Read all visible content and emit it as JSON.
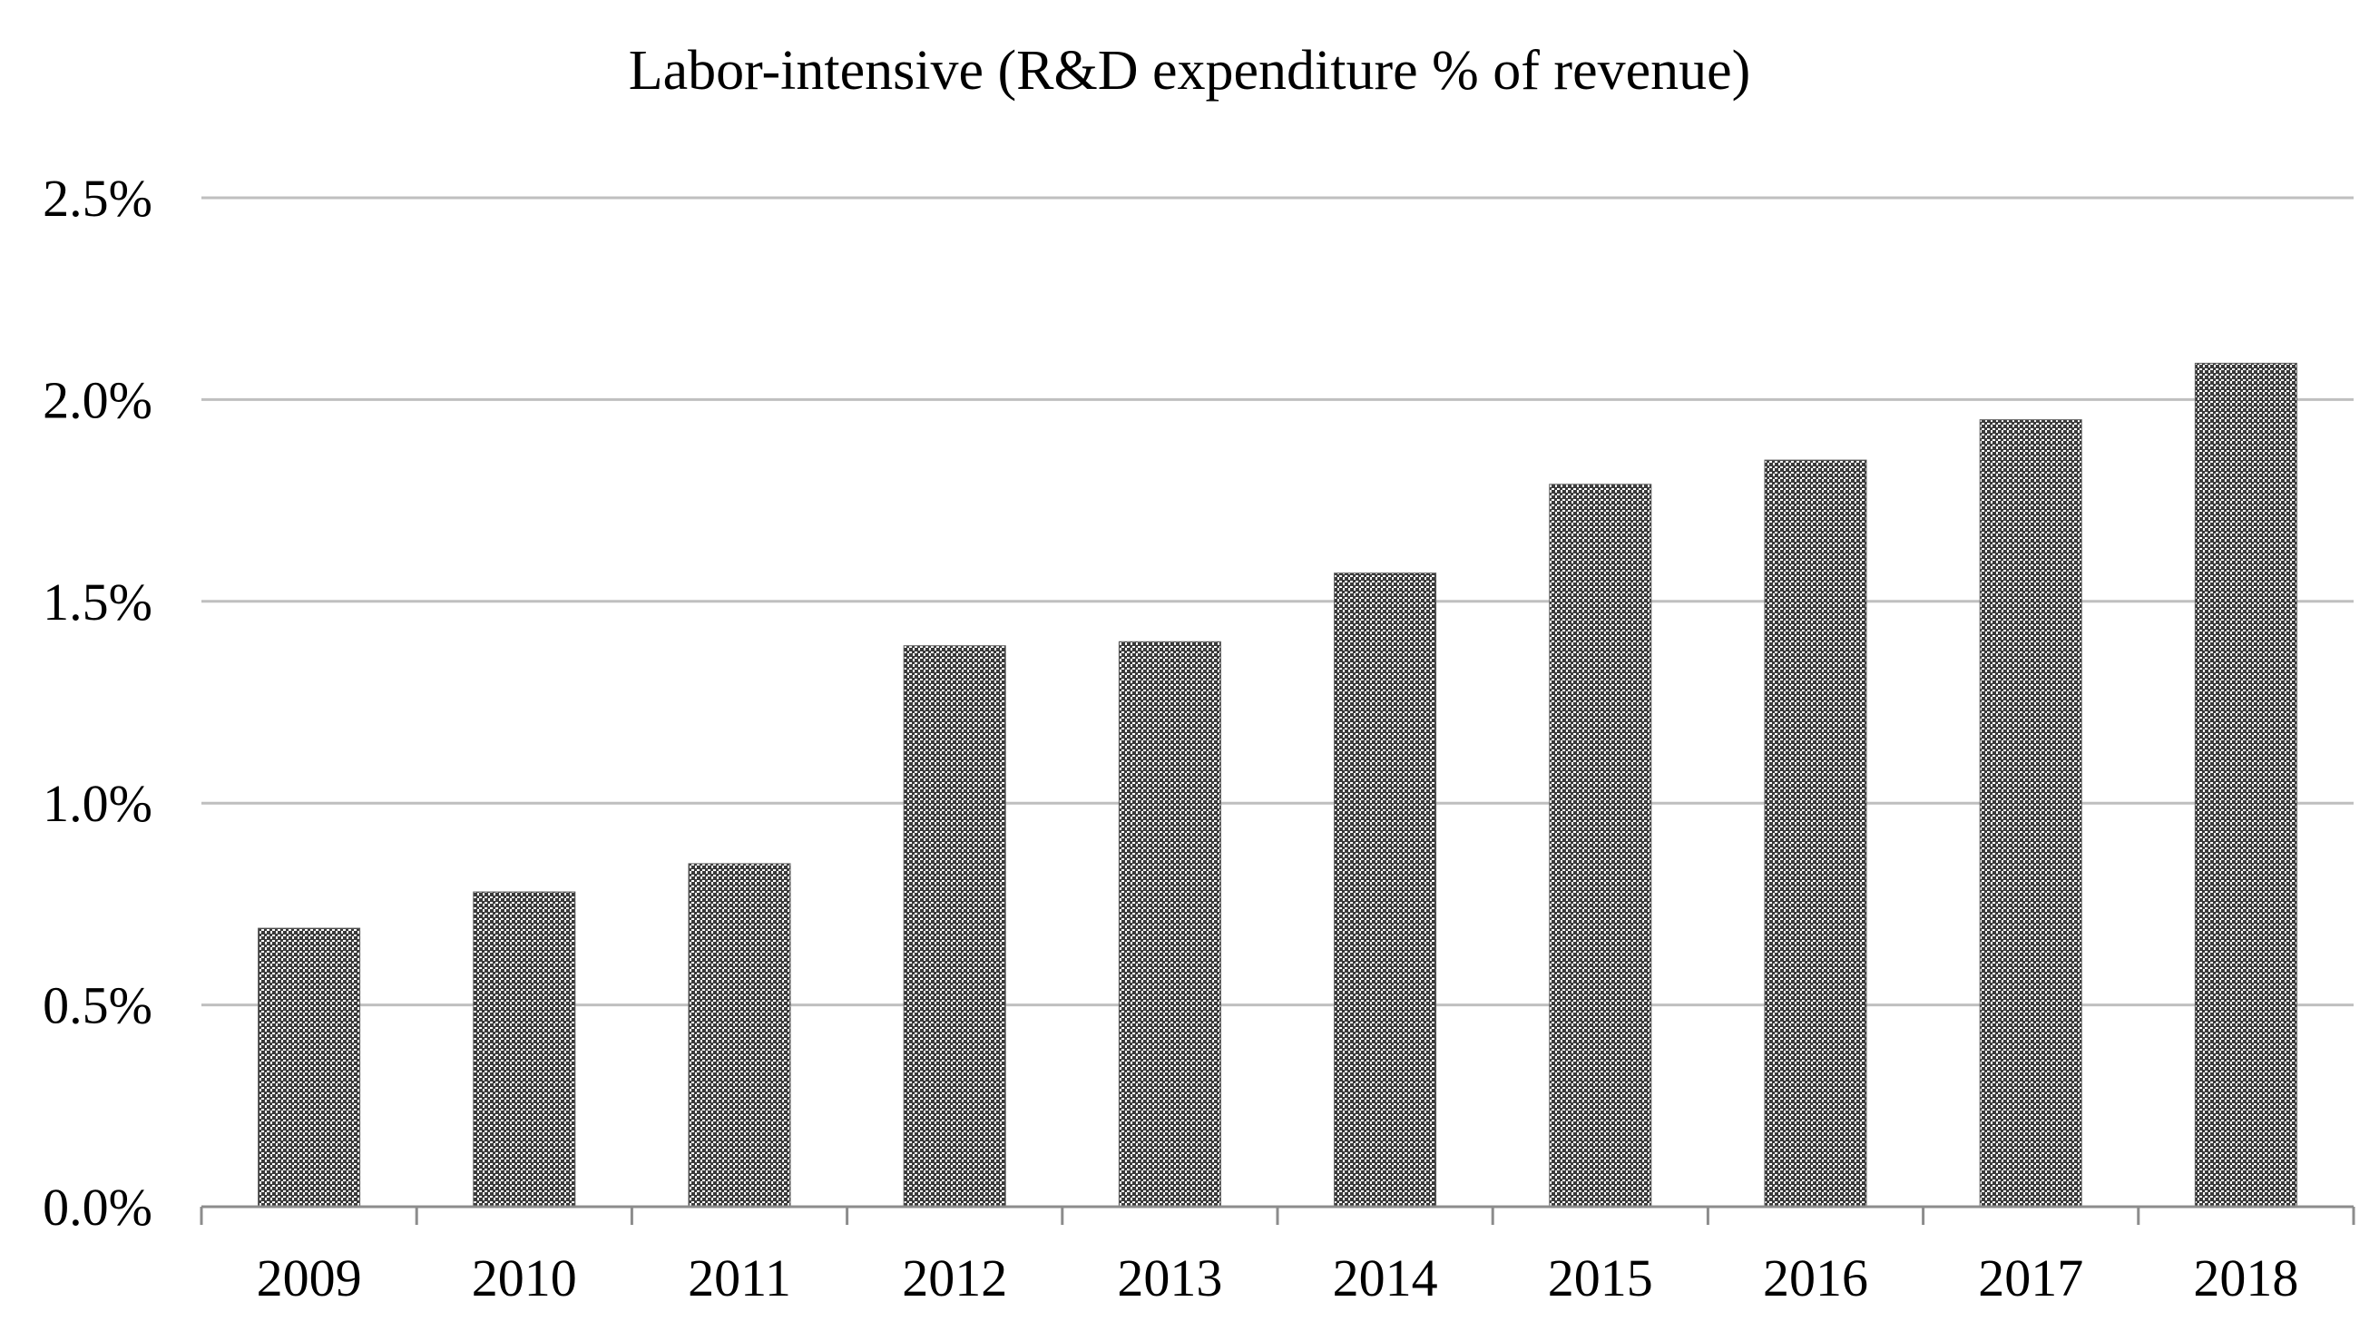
{
  "chart_data": {
    "type": "bar",
    "title": "Labor-intensive (R&D expenditure % of revenue)",
    "xlabel": "",
    "ylabel": "",
    "categories": [
      "2009",
      "2010",
      "2011",
      "2012",
      "2013",
      "2014",
      "2015",
      "2016",
      "2017",
      "2018"
    ],
    "values": [
      0.69,
      0.78,
      0.85,
      1.39,
      1.4,
      1.57,
      1.79,
      1.85,
      1.95,
      2.09
    ],
    "value_unit": "%",
    "ylim": [
      0,
      2.5
    ],
    "yticks": [
      0.0,
      0.5,
      1.0,
      1.5,
      2.0,
      2.5
    ],
    "ytick_labels": [
      "0.0%",
      "0.5%",
      "1.0%",
      "1.5%",
      "2.0%",
      "2.5%"
    ],
    "grid": true,
    "legend": "none",
    "bar_fill": "dotted-dark-gray",
    "colors": {
      "bar_dot": "#3a3a3a",
      "bar_bg": "#ffffff",
      "grid": "#bfbfbf",
      "axis": "#8c8c8c",
      "text": "#000000"
    }
  }
}
